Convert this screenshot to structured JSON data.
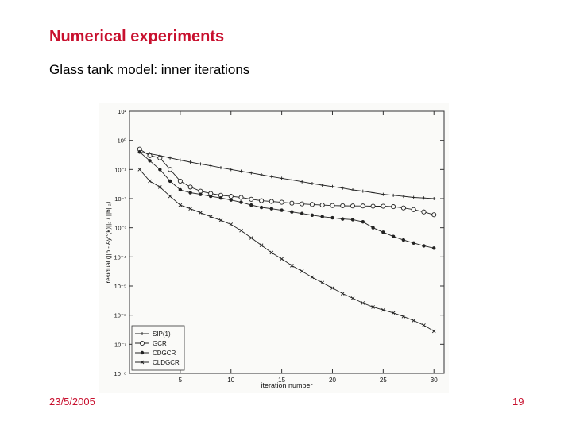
{
  "slide": {
    "title": "Numerical experiments",
    "subtitle": "Glass tank model: inner iterations",
    "date": "23/5/2005",
    "page_number": "19"
  },
  "chart_data": {
    "type": "line",
    "xlabel": "iteration number",
    "ylabel": "residual (||b - Ay^(k)||₂ / ||b||₂)",
    "xlim": [
      0,
      31
    ],
    "ylim": [
      1e-08,
      10
    ],
    "y_scale": "log",
    "x_ticks": [
      5,
      10,
      15,
      20,
      25,
      30
    ],
    "y_ticks": [
      {
        "value": 10,
        "label": "10¹"
      },
      {
        "value": 1,
        "label": "10⁰"
      },
      {
        "value": 0.1,
        "label": "10⁻¹"
      },
      {
        "value": 0.01,
        "label": "10⁻²"
      },
      {
        "value": 0.001,
        "label": "10⁻³"
      },
      {
        "value": 0.0001,
        "label": "10⁻⁴"
      },
      {
        "value": 1e-05,
        "label": "10⁻⁵"
      },
      {
        "value": 1e-06,
        "label": "10⁻⁶"
      },
      {
        "value": 1e-07,
        "label": "10⁻⁷"
      },
      {
        "value": 1e-08,
        "label": "10⁻⁸"
      }
    ],
    "grid": false,
    "legend_position": "bottom-left",
    "x": [
      1,
      2,
      3,
      4,
      5,
      6,
      7,
      8,
      9,
      10,
      11,
      12,
      13,
      14,
      15,
      16,
      17,
      18,
      19,
      20,
      21,
      22,
      23,
      24,
      25,
      26,
      27,
      28,
      29,
      30
    ],
    "series": [
      {
        "name": "SIP(1)",
        "marker": "plus",
        "values": [
          0.4,
          0.35,
          0.3,
          0.25,
          0.21,
          0.18,
          0.155,
          0.135,
          0.115,
          0.1,
          0.087,
          0.076,
          0.066,
          0.057,
          0.05,
          0.044,
          0.038,
          0.033,
          0.029,
          0.026,
          0.023,
          0.02,
          0.018,
          0.016,
          0.014,
          0.013,
          0.012,
          0.011,
          0.0105,
          0.01
        ]
      },
      {
        "name": "GCR",
        "marker": "circle",
        "values": [
          0.5,
          0.3,
          0.25,
          0.1,
          0.04,
          0.025,
          0.018,
          0.015,
          0.013,
          0.012,
          0.011,
          0.0095,
          0.0085,
          0.008,
          0.0075,
          0.007,
          0.0066,
          0.0063,
          0.006,
          0.0058,
          0.0057,
          0.0056,
          0.0056,
          0.0055,
          0.0055,
          0.0053,
          0.0048,
          0.0042,
          0.0035,
          0.0028
        ]
      },
      {
        "name": "CDGCR",
        "marker": "dot",
        "values": [
          0.4,
          0.2,
          0.1,
          0.04,
          0.02,
          0.016,
          0.014,
          0.012,
          0.0105,
          0.009,
          0.0075,
          0.006,
          0.005,
          0.0045,
          0.004,
          0.0035,
          0.0031,
          0.0027,
          0.0024,
          0.0022,
          0.002,
          0.0019,
          0.0016,
          0.001,
          0.0007,
          0.0005,
          0.00038,
          0.0003,
          0.00024,
          0.0002
        ]
      },
      {
        "name": "CLDGCR",
        "marker": "cross",
        "values": [
          0.1,
          0.04,
          0.025,
          0.012,
          0.006,
          0.0045,
          0.0033,
          0.0024,
          0.0018,
          0.0013,
          0.0008,
          0.00045,
          0.00025,
          0.00014,
          8.5e-05,
          5e-05,
          3.2e-05,
          2e-05,
          1.3e-05,
          8.5e-06,
          5.5e-06,
          3.8e-06,
          2.6e-06,
          1.9e-06,
          1.5e-06,
          1.2e-06,
          9e-07,
          6.5e-07,
          4.5e-07,
          2.8e-07
        ]
      }
    ]
  }
}
